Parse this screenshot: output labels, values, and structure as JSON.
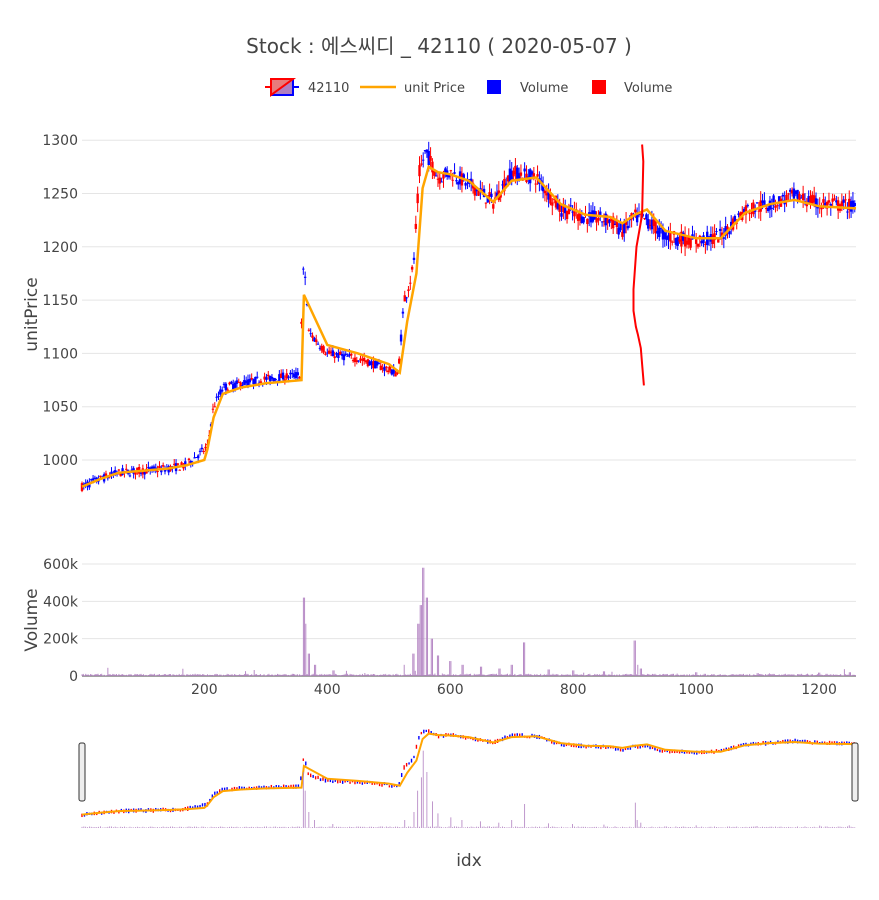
{
  "title": "Stock :  에스씨디 _ 42110 ( 2020-05-07 )",
  "legend": {
    "items": [
      {
        "label": "42110",
        "kind": "candle"
      },
      {
        "label": "unit Price",
        "kind": "line"
      },
      {
        "label": "Volume",
        "kind": "square-blue"
      },
      {
        "label": "Volume",
        "kind": "square-red"
      }
    ]
  },
  "colors": {
    "up": "#ff0000",
    "down": "#0000ff",
    "avg_line": "#ffa500",
    "grid": "#e5e5e5",
    "axis_text": "#444444",
    "title_text": "#444444",
    "volume_fill": "#b07fc0",
    "rangeslider_border": "#444444"
  },
  "chart_data": [
    {
      "type": "candlestick",
      "name": "price-panel",
      "ylabel": "unitPrice",
      "ylim": [
        955,
        1318
      ],
      "yticks": [
        1000,
        1050,
        1100,
        1150,
        1200,
        1250,
        1300
      ],
      "xlim": [
        1,
        1260
      ],
      "grid": true,
      "series": [
        {
          "name": "42110",
          "kind": "ohlc-trend",
          "points": [
            [
              1,
              975
            ],
            [
              30,
              982
            ],
            [
              60,
              988
            ],
            [
              100,
              990
            ],
            [
              140,
              992
            ],
            [
              170,
              995
            ],
            [
              190,
              1005
            ],
            [
              205,
              1012
            ],
            [
              215,
              1050
            ],
            [
              230,
              1068
            ],
            [
              260,
              1072
            ],
            [
              300,
              1076
            ],
            [
              355,
              1080
            ],
            [
              362,
              1190
            ],
            [
              370,
              1120
            ],
            [
              400,
              1100
            ],
            [
              450,
              1095
            ],
            [
              500,
              1085
            ],
            [
              515,
              1080
            ],
            [
              525,
              1150
            ],
            [
              540,
              1180
            ],
            [
              550,
              1270
            ],
            [
              560,
              1290
            ],
            [
              580,
              1265
            ],
            [
              600,
              1270
            ],
            [
              640,
              1255
            ],
            [
              670,
              1242
            ],
            [
              700,
              1270
            ],
            [
              740,
              1265
            ],
            [
              780,
              1235
            ],
            [
              820,
              1228
            ],
            [
              860,
              1225
            ],
            [
              880,
              1215
            ],
            [
              900,
              1228
            ],
            [
              920,
              1225
            ],
            [
              950,
              1210
            ],
            [
              1000,
              1205
            ],
            [
              1040,
              1210
            ],
            [
              1080,
              1235
            ],
            [
              1120,
              1240
            ],
            [
              1160,
              1248
            ],
            [
              1200,
              1240
            ],
            [
              1260,
              1238
            ]
          ]
        },
        {
          "name": "unit Price",
          "kind": "line",
          "points": [
            [
              1,
              975
            ],
            [
              30,
              982
            ],
            [
              60,
              988
            ],
            [
              100,
              990
            ],
            [
              140,
              992
            ],
            [
              170,
              995
            ],
            [
              200,
              1000
            ],
            [
              205,
              1010
            ],
            [
              215,
              1040
            ],
            [
              230,
              1062
            ],
            [
              260,
              1068
            ],
            [
              300,
              1072
            ],
            [
              358,
              1075
            ],
            [
              362,
              1155
            ],
            [
              370,
              1145
            ],
            [
              400,
              1108
            ],
            [
              450,
              1100
            ],
            [
              500,
              1090
            ],
            [
              518,
              1082
            ],
            [
              530,
              1130
            ],
            [
              545,
              1175
            ],
            [
              555,
              1255
            ],
            [
              565,
              1275
            ],
            [
              580,
              1270
            ],
            [
              600,
              1268
            ],
            [
              630,
              1262
            ],
            [
              670,
              1242
            ],
            [
              700,
              1262
            ],
            [
              740,
              1265
            ],
            [
              780,
              1240
            ],
            [
              820,
              1230
            ],
            [
              860,
              1228
            ],
            [
              880,
              1222
            ],
            [
              900,
              1230
            ],
            [
              920,
              1235
            ],
            [
              950,
              1215
            ],
            [
              1000,
              1208
            ],
            [
              1040,
              1208
            ],
            [
              1080,
              1232
            ],
            [
              1120,
              1240
            ],
            [
              1160,
              1244
            ],
            [
              1200,
              1238
            ],
            [
              1260,
              1236
            ]
          ]
        }
      ],
      "annotations": [
        {
          "kind": "freehand-stroke",
          "color": "#ff0000",
          "points": [
            [
              912,
              1296
            ],
            [
              914,
              1280
            ],
            [
              912,
              1230
            ],
            [
              903,
              1200
            ],
            [
              898,
              1160
            ],
            [
              898,
              1140
            ],
            [
              902,
              1125
            ],
            [
              905,
              1118
            ],
            [
              910,
              1105
            ],
            [
              912,
              1090
            ],
            [
              915,
              1070
            ]
          ]
        }
      ]
    },
    {
      "type": "bar",
      "name": "volume-panel",
      "ylabel": "Volume",
      "ylim": [
        0,
        600000
      ],
      "yticks": [
        0,
        200000,
        400000,
        600000
      ],
      "ytick_labels": [
        "0",
        "200k",
        "400k",
        "600k"
      ],
      "xlabel": "idx",
      "xlim": [
        1,
        1260
      ],
      "xticks": [
        200,
        400,
        600,
        800,
        1000,
        1200
      ],
      "grid": true,
      "spikes": [
        [
          362,
          420000
        ],
        [
          365,
          280000
        ],
        [
          370,
          120000
        ],
        [
          380,
          60000
        ],
        [
          410,
          30000
        ],
        [
          525,
          60000
        ],
        [
          540,
          120000
        ],
        [
          548,
          280000
        ],
        [
          552,
          380000
        ],
        [
          556,
          580000
        ],
        [
          562,
          420000
        ],
        [
          570,
          200000
        ],
        [
          580,
          110000
        ],
        [
          600,
          80000
        ],
        [
          620,
          60000
        ],
        [
          650,
          50000
        ],
        [
          680,
          40000
        ],
        [
          700,
          60000
        ],
        [
          720,
          180000
        ],
        [
          760,
          35000
        ],
        [
          800,
          30000
        ],
        [
          850,
          25000
        ],
        [
          900,
          190000
        ],
        [
          905,
          60000
        ],
        [
          910,
          40000
        ],
        [
          1000,
          20000
        ],
        [
          1100,
          15000
        ],
        [
          1200,
          18000
        ],
        [
          1250,
          20000
        ]
      ]
    }
  ]
}
